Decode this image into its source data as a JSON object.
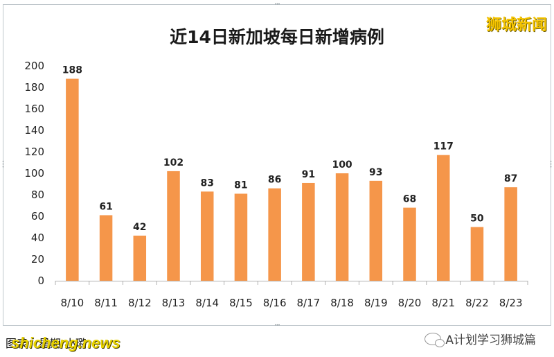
{
  "brand": "狮城新闻",
  "footer": {
    "credit": "图表：星期·小璐",
    "watermark": "shicheng.news",
    "account": "A计划学习狮城篇",
    "account_icon": "wechat-icon"
  },
  "chart_data": {
    "type": "bar",
    "title": "近14日新加坡每日新增病例",
    "xlabel": "",
    "ylabel": "",
    "ylim": [
      0,
      200
    ],
    "yticks": [
      0,
      20,
      40,
      60,
      80,
      100,
      120,
      140,
      160,
      180,
      200
    ],
    "categories": [
      "8/10",
      "8/11",
      "8/12",
      "8/13",
      "8/14",
      "8/15",
      "8/16",
      "8/17",
      "8/18",
      "8/19",
      "8/20",
      "8/21",
      "8/22",
      "8/23"
    ],
    "values": [
      188,
      61,
      42,
      102,
      83,
      81,
      86,
      91,
      100,
      93,
      68,
      117,
      50,
      87
    ],
    "bar_color": "#f5964a",
    "grid": false,
    "legend": "none"
  }
}
